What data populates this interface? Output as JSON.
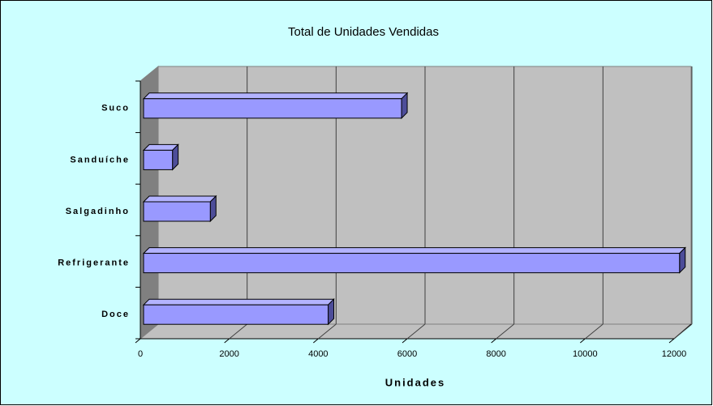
{
  "chart_data": {
    "type": "bar3d-horizontal",
    "title": "Total de Unidades Vendidas",
    "categories": [
      "Doce",
      "Refrigerante",
      "Salgadinho",
      "Sanduíche",
      "Suco"
    ],
    "values": [
      4150,
      12050,
      1500,
      650,
      5800
    ],
    "color": "#9999ff",
    "xlabel": "Unidades",
    "xlim": [
      0,
      12000
    ],
    "xticks": [
      0,
      2000,
      4000,
      6000,
      8000,
      10000,
      12000
    ],
    "grid": true
  }
}
